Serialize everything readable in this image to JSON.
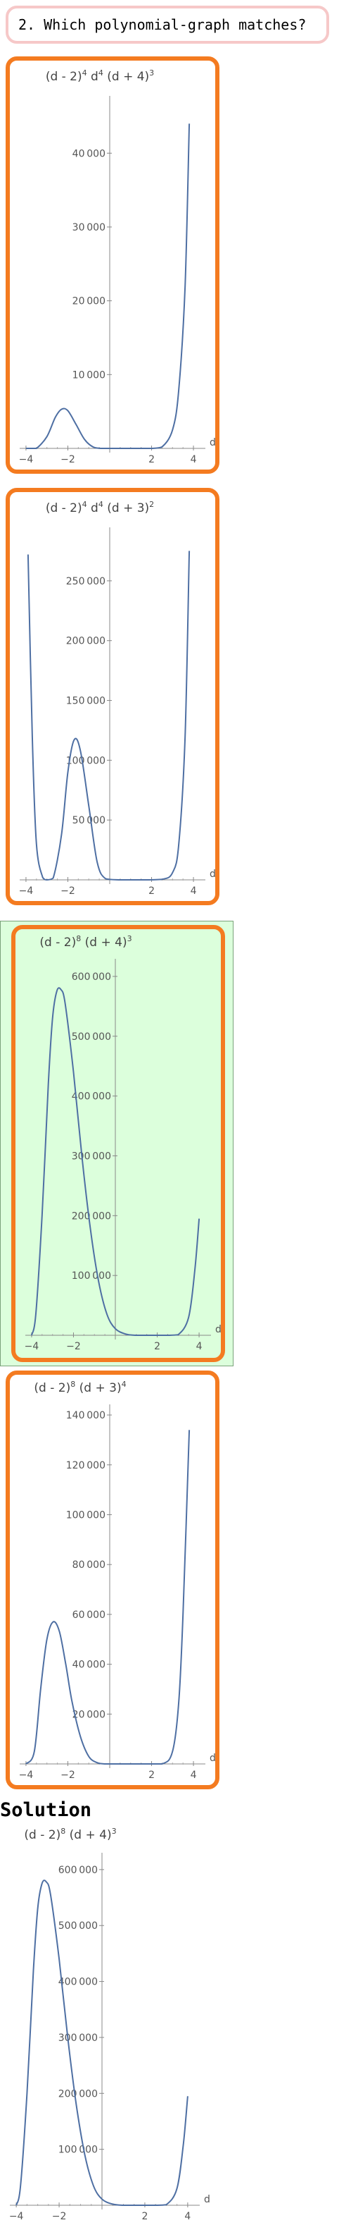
{
  "question": {
    "text": "2. Which polynomial-graph matches?"
  },
  "solution": {
    "heading": "Solution"
  },
  "options": [
    {
      "id": "option-1",
      "title_parts": [
        "(d - 2)",
        "4",
        " d",
        "4",
        " (d + 4)",
        "3"
      ],
      "selected": false,
      "chart_data": {
        "type": "line",
        "title": "(d - 2)^4 d^4 (d + 4)^3",
        "xlabel": "d",
        "ylabel": "",
        "xlim": [
          -4.3,
          4.3
        ],
        "ylim": [
          0,
          47000
        ],
        "x_ticks": [
          "-4",
          "-2",
          "2",
          "4"
        ],
        "y_ticks": [
          "10000",
          "20000",
          "30000",
          "40000"
        ],
        "x": [
          -4.0,
          -3.8,
          -3.5,
          -3.0,
          -2.6,
          -2.3,
          -2.0,
          -1.6,
          -1.2,
          -0.8,
          -0.4,
          0.0,
          0.5,
          1.0,
          1.5,
          2.0,
          2.5,
          3.0,
          3.3,
          3.6,
          3.8
        ],
        "y": [
          0,
          0,
          0,
          1600,
          4200,
          5300,
          5100,
          3200,
          1200,
          200,
          0,
          0,
          0,
          0,
          0,
          0,
          200,
          2500,
          8000,
          22000,
          44000
        ]
      }
    },
    {
      "id": "option-2",
      "title_parts": [
        "(d - 2)",
        "4",
        " d",
        "4",
        " (d + 3)",
        "2"
      ],
      "selected": false,
      "chart_data": {
        "type": "line",
        "title": "(d - 2)^4 d^4 (d + 3)^2",
        "xlabel": "d",
        "ylabel": "",
        "xlim": [
          -4.3,
          4.3
        ],
        "ylim": [
          0,
          290000
        ],
        "x_ticks": [
          "-4",
          "-2",
          "2",
          "4"
        ],
        "y_ticks": [
          "50000",
          "100000",
          "150000",
          "200000",
          "250000"
        ],
        "x": [
          -3.9,
          -3.7,
          -3.5,
          -3.2,
          -3.0,
          -2.7,
          -2.3,
          -2.0,
          -1.7,
          -1.4,
          -1.0,
          -0.6,
          -0.2,
          0.5,
          1.5,
          2.5,
          3.0,
          3.3,
          3.6,
          3.8
        ],
        "y": [
          272000,
          120000,
          30000,
          2000,
          0,
          1500,
          38000,
          90000,
          117000,
          108000,
          62000,
          15000,
          1000,
          0,
          0,
          500,
          6000,
          30000,
          120000,
          275000
        ]
      }
    },
    {
      "id": "option-3",
      "title_parts": [
        "(d - 2)",
        "8",
        " (d + 4)",
        "3"
      ],
      "selected": true,
      "chart_data": {
        "type": "line",
        "title": "(d - 2)^8 (d + 4)^3",
        "xlabel": "d",
        "ylabel": "",
        "xlim": [
          -4.3,
          4.3
        ],
        "ylim": [
          0,
          620000
        ],
        "x_ticks": [
          "-4",
          "-2",
          "2",
          "4"
        ],
        "y_ticks": [
          "100000",
          "200000",
          "300000",
          "400000",
          "500000",
          "600000"
        ],
        "x": [
          -4.0,
          -3.8,
          -3.5,
          -3.2,
          -3.0,
          -2.8,
          -2.6,
          -2.4,
          -2.0,
          -1.6,
          -1.2,
          -0.8,
          -0.4,
          0.0,
          0.5,
          1.0,
          1.5,
          2.0,
          2.5,
          3.0,
          3.5,
          3.8,
          4.0
        ],
        "y": [
          0,
          35000,
          200000,
          420000,
          530000,
          575000,
          578000,
          555000,
          440000,
          300000,
          180000,
          90000,
          35000,
          11000,
          2000,
          0,
          0,
          0,
          0,
          1000,
          30000,
          110000,
          195000
        ]
      }
    },
    {
      "id": "option-4",
      "title_parts": [
        "(d - 2)",
        "8",
        " (d + 3)",
        "4"
      ],
      "selected": false,
      "chart_data": {
        "type": "line",
        "title": "(d - 2)^8 (d + 3)^4",
        "xlabel": "d",
        "ylabel": "",
        "xlim": [
          -4.3,
          4.3
        ],
        "ylim": [
          0,
          142000
        ],
        "x_ticks": [
          "-4",
          "-2",
          "2",
          "4"
        ],
        "y_ticks": [
          "20000",
          "40000",
          "60000",
          "80000",
          "100000",
          "120000",
          "140000"
        ],
        "x": [
          -4.0,
          -3.6,
          -3.3,
          -3.0,
          -2.7,
          -2.4,
          -2.1,
          -1.8,
          -1.4,
          -1.0,
          -0.6,
          -0.2,
          0.5,
          1.5,
          2.5,
          3.0,
          3.3,
          3.5,
          3.8
        ],
        "y": [
          0,
          5000,
          30000,
          50000,
          57000,
          53000,
          40000,
          25000,
          11000,
          3000,
          500,
          0,
          0,
          0,
          0,
          5000,
          25000,
          60000,
          134000
        ]
      }
    }
  ],
  "solution_chart": {
    "title_parts": [
      "(d - 2)",
      "8",
      " (d + 4)",
      "3"
    ],
    "chart_data": {
      "type": "line",
      "title": "(d - 2)^8 (d + 4)^3",
      "xlabel": "d",
      "ylabel": "",
      "xlim": [
        -4.3,
        4.3
      ],
      "ylim": [
        0,
        620000
      ],
      "x_ticks": [
        "-4",
        "-2",
        "2",
        "4"
      ],
      "y_ticks": [
        "100000",
        "200000",
        "300000",
        "400000",
        "500000",
        "600000"
      ],
      "x": [
        -4.0,
        -3.8,
        -3.5,
        -3.2,
        -3.0,
        -2.8,
        -2.6,
        -2.4,
        -2.0,
        -1.6,
        -1.2,
        -0.8,
        -0.4,
        0.0,
        0.5,
        1.0,
        1.5,
        2.0,
        2.5,
        3.0,
        3.5,
        3.8,
        4.0
      ],
      "y": [
        0,
        35000,
        200000,
        420000,
        530000,
        575000,
        578000,
        555000,
        440000,
        300000,
        180000,
        90000,
        35000,
        11000,
        2000,
        0,
        0,
        0,
        0,
        1000,
        30000,
        110000,
        195000
      ]
    }
  },
  "colors": {
    "curve": "#4e6fa3",
    "axis": "#888888",
    "card_border": "#f47b20",
    "selected_bg": "#dcffdc",
    "question_border": "#f6c8c8"
  }
}
